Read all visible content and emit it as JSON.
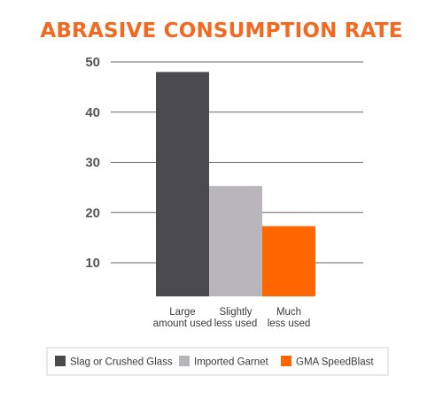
{
  "chart_data": {
    "type": "bar",
    "title": "ABRASIVE CONSUMPTION RATE",
    "xlabel": "",
    "ylabel": "",
    "ylim": [
      5,
      50
    ],
    "yticks": [
      10,
      20,
      30,
      40,
      50
    ],
    "grid": true,
    "legend_position": "bottom",
    "categories": [
      [
        "Large",
        "amount used"
      ],
      [
        "Slightly",
        "less used"
      ],
      [
        "Much",
        "less used"
      ]
    ],
    "series": [
      {
        "name": "Slag or Crushed Glass",
        "values": [
          48,
          null,
          null
        ],
        "color": "#4a4a4f"
      },
      {
        "name": "Imported Garnet",
        "values": [
          null,
          25.3,
          null
        ],
        "color": "#b8b6bb"
      },
      {
        "name": "GMA SpeedBlast",
        "values": [
          null,
          null,
          17.3
        ],
        "color": "#ff6600"
      }
    ],
    "colors": {
      "title": "#f26a21",
      "grid": "#666666",
      "axis_text": "#555555"
    }
  }
}
